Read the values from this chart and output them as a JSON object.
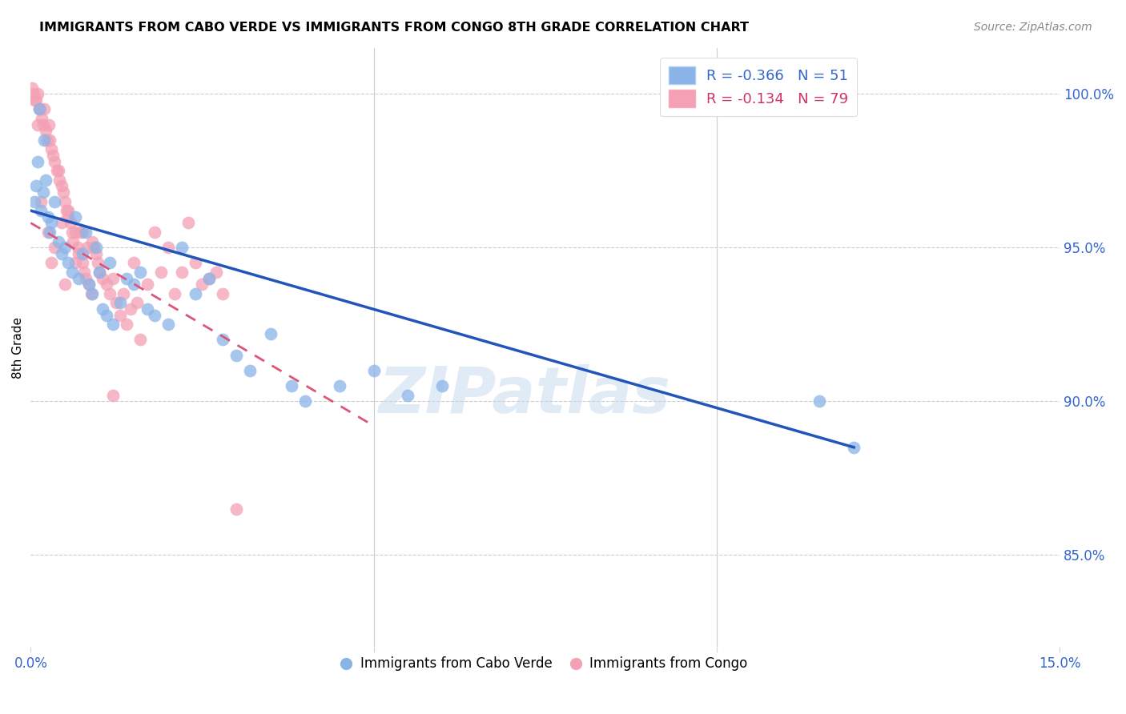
{
  "title": "IMMIGRANTS FROM CABO VERDE VS IMMIGRANTS FROM CONGO 8TH GRADE CORRELATION CHART",
  "source": "Source: ZipAtlas.com",
  "ylabel": "8th Grade",
  "xlim": [
    0.0,
    15.0
  ],
  "ylim": [
    82.0,
    101.5
  ],
  "yticks": [
    85.0,
    90.0,
    95.0,
    100.0
  ],
  "ytick_labels": [
    "85.0%",
    "90.0%",
    "95.0%",
    "100.0%"
  ],
  "cabo_verde_color": "#8ab4e8",
  "congo_color": "#f4a0b5",
  "cabo_verde_R": -0.366,
  "cabo_verde_N": 51,
  "congo_R": -0.134,
  "congo_N": 79,
  "cabo_verde_line_color": "#2255bb",
  "congo_line_color": "#dd5577",
  "watermark": "ZIPatlas",
  "cabo_verde_x": [
    0.05,
    0.08,
    0.1,
    0.12,
    0.15,
    0.18,
    0.2,
    0.22,
    0.25,
    0.28,
    0.3,
    0.35,
    0.4,
    0.45,
    0.5,
    0.55,
    0.6,
    0.65,
    0.7,
    0.75,
    0.8,
    0.85,
    0.9,
    0.95,
    1.0,
    1.05,
    1.1,
    1.15,
    1.2,
    1.3,
    1.4,
    1.5,
    1.6,
    1.7,
    1.8,
    2.0,
    2.2,
    2.4,
    2.6,
    2.8,
    3.0,
    3.2,
    3.5,
    3.8,
    4.0,
    4.5,
    5.0,
    5.5,
    6.0,
    11.5,
    12.0
  ],
  "cabo_verde_y": [
    96.5,
    97.0,
    97.8,
    99.5,
    96.2,
    96.8,
    98.5,
    97.2,
    96.0,
    95.5,
    95.8,
    96.5,
    95.2,
    94.8,
    95.0,
    94.5,
    94.2,
    96.0,
    94.0,
    94.8,
    95.5,
    93.8,
    93.5,
    95.0,
    94.2,
    93.0,
    92.8,
    94.5,
    92.5,
    93.2,
    94.0,
    93.8,
    94.2,
    93.0,
    92.8,
    92.5,
    95.0,
    93.5,
    94.0,
    92.0,
    91.5,
    91.0,
    92.2,
    90.5,
    90.0,
    90.5,
    91.0,
    90.2,
    90.5,
    90.0,
    88.5
  ],
  "congo_x": [
    0.02,
    0.04,
    0.06,
    0.08,
    0.1,
    0.12,
    0.14,
    0.16,
    0.18,
    0.2,
    0.22,
    0.24,
    0.26,
    0.28,
    0.3,
    0.32,
    0.35,
    0.38,
    0.4,
    0.42,
    0.45,
    0.48,
    0.5,
    0.52,
    0.55,
    0.58,
    0.6,
    0.62,
    0.65,
    0.68,
    0.7,
    0.72,
    0.75,
    0.78,
    0.8,
    0.82,
    0.85,
    0.88,
    0.9,
    0.92,
    0.95,
    0.98,
    1.0,
    1.05,
    1.1,
    1.15,
    1.2,
    1.25,
    1.3,
    1.35,
    1.4,
    1.45,
    1.5,
    1.55,
    1.6,
    1.7,
    1.8,
    1.9,
    2.0,
    2.1,
    2.2,
    2.3,
    2.4,
    2.5,
    2.6,
    2.7,
    2.8,
    0.15,
    0.25,
    0.35,
    0.45,
    0.55,
    0.65,
    0.75,
    0.5,
    1.2,
    0.3,
    0.1,
    3.0
  ],
  "congo_y": [
    100.2,
    100.0,
    99.8,
    99.8,
    100.0,
    99.5,
    99.5,
    99.2,
    99.0,
    99.5,
    98.8,
    98.5,
    99.0,
    98.5,
    98.2,
    98.0,
    97.8,
    97.5,
    97.5,
    97.2,
    97.0,
    96.8,
    96.5,
    96.2,
    96.0,
    95.8,
    95.5,
    95.2,
    95.5,
    95.0,
    94.8,
    95.5,
    94.5,
    94.2,
    94.0,
    95.0,
    93.8,
    93.5,
    95.2,
    95.0,
    94.8,
    94.5,
    94.2,
    94.0,
    93.8,
    93.5,
    94.0,
    93.2,
    92.8,
    93.5,
    92.5,
    93.0,
    94.5,
    93.2,
    92.0,
    93.8,
    95.5,
    94.2,
    95.0,
    93.5,
    94.2,
    95.8,
    94.5,
    93.8,
    94.0,
    94.2,
    93.5,
    96.5,
    95.5,
    95.0,
    95.8,
    96.2,
    94.5,
    95.5,
    93.8,
    90.2,
    94.5,
    99.0,
    86.5
  ]
}
